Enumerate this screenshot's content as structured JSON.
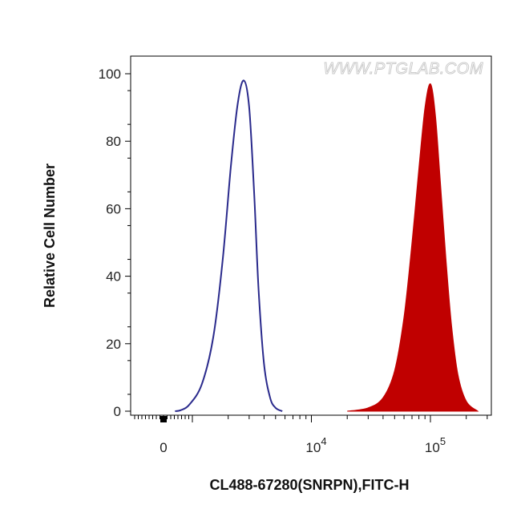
{
  "chart_data": {
    "type": "area",
    "title": "",
    "xlabel": "CL488-67280(SNRPN),FITC-H",
    "ylabel": "Relative Cell Number",
    "xscale": "biexponential",
    "ylim": [
      0,
      100
    ],
    "yticks": [
      0,
      20,
      40,
      60,
      80,
      100
    ],
    "xtick_labels": [
      {
        "base": "0",
        "exp": "",
        "value": 0
      },
      {
        "base": "10",
        "exp": "4",
        "value": 10000
      },
      {
        "base": "10",
        "exp": "5",
        "value": 100000
      }
    ],
    "grid": false,
    "legend": "none",
    "watermark": "WWW.PTGLAB.COM",
    "series": [
      {
        "style": "outline",
        "color": "#2a2a8c",
        "x": [
          400,
          600,
          900,
          1200,
          1500,
          1800,
          2100,
          2400,
          2700,
          3000,
          3300,
          3600,
          4000,
          4500,
          5000,
          5700
        ],
        "y": [
          0,
          0.3,
          2,
          8,
          22,
          45,
          72,
          91,
          98,
          90,
          65,
          36,
          14,
          4,
          1,
          0
        ]
      },
      {
        "style": "filled",
        "color": "#c00000",
        "x": [
          20000,
          30000,
          40000,
          50000,
          60000,
          70000,
          80000,
          90000,
          100000,
          110000,
          120000,
          135000,
          150000,
          170000,
          200000,
          250000
        ],
        "y": [
          0,
          1,
          4,
          12,
          28,
          50,
          72,
          90,
          97,
          88,
          70,
          45,
          26,
          11,
          3,
          0
        ]
      }
    ]
  }
}
